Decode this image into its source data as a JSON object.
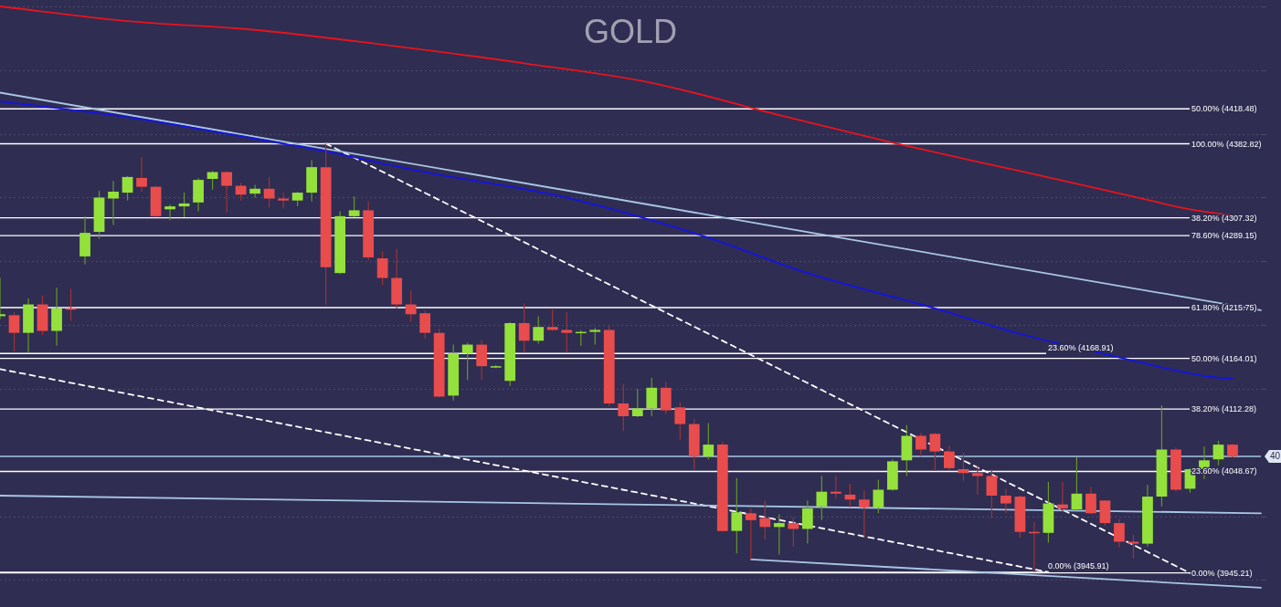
{
  "chart_data": {
    "type": "candlestick",
    "title": "GOLD",
    "categories": [
      null,
      null,
      null,
      null,
      null,
      null,
      null,
      null,
      null,
      null,
      null,
      null,
      null,
      null,
      null,
      null,
      null,
      null,
      null,
      null,
      null,
      null,
      null,
      null,
      null,
      null,
      null,
      null,
      null,
      null,
      null,
      null,
      null,
      null,
      null,
      null,
      null,
      null,
      null,
      null,
      null,
      null,
      null,
      null,
      null,
      null,
      null,
      null,
      null,
      null,
      null,
      null,
      null,
      null,
      null,
      null,
      null,
      null,
      null,
      null,
      null,
      null,
      null,
      null,
      null,
      null,
      null,
      null,
      null,
      null,
      null,
      null,
      null,
      null,
      null,
      null,
      null,
      null,
      null,
      null,
      null,
      null,
      null,
      null,
      null,
      null,
      null,
      null,
      null,
      null
    ],
    "ohlc": [
      [
        4207,
        4246,
        4204,
        4209
      ],
      [
        4208,
        4211,
        4171,
        4190
      ],
      [
        4190,
        4225,
        4170,
        4219
      ],
      [
        4219,
        4228,
        4188,
        4192
      ],
      [
        4192,
        4236,
        4177,
        4215
      ],
      [
        4215,
        4235,
        4202,
        4214
      ],
      [
        4268,
        4309,
        4260,
        4292
      ],
      [
        4293,
        4335,
        4286,
        4328
      ],
      [
        4327,
        4345,
        4300,
        4334
      ],
      [
        4333,
        4350,
        4325,
        4349
      ],
      [
        4348,
        4369,
        4334,
        4339
      ],
      [
        4339,
        4340,
        4308,
        4309
      ],
      [
        4316,
        4321,
        4305,
        4319
      ],
      [
        4319,
        4333,
        4308,
        4322
      ],
      [
        4323,
        4348,
        4314,
        4346
      ],
      [
        4347,
        4355,
        4336,
        4354
      ],
      [
        4354,
        4355,
        4313,
        4340
      ],
      [
        4340,
        4343,
        4325,
        4331
      ],
      [
        4332,
        4341,
        4328,
        4337
      ],
      [
        4337,
        4349,
        4318,
        4327
      ],
      [
        4327,
        4333,
        4317,
        4325
      ],
      [
        4325,
        4334,
        4319,
        4333
      ],
      [
        4333,
        4366,
        4324,
        4359
      ],
      [
        4359,
        4383,
        4219,
        4257
      ],
      [
        4251,
        4314,
        4250,
        4309
      ],
      [
        4309,
        4329,
        4308,
        4315
      ],
      [
        4315,
        4324,
        4264,
        4267
      ],
      [
        4266,
        4273,
        4239,
        4246
      ],
      [
        4246,
        4276,
        4215,
        4219
      ],
      [
        4219,
        4233,
        4201,
        4209
      ],
      [
        4210,
        4213,
        4184,
        4190
      ],
      [
        4190,
        4194,
        4124,
        4125
      ],
      [
        4126,
        4178,
        4121,
        4169
      ],
      [
        4169,
        4180,
        4142,
        4178
      ],
      [
        4178,
        4183,
        4142,
        4156
      ],
      [
        4155,
        4157,
        4154,
        4156
      ],
      [
        4141,
        4201,
        4136,
        4200
      ],
      [
        4200,
        4220,
        4170,
        4182
      ],
      [
        4182,
        4207,
        4179,
        4196
      ],
      [
        4196,
        4214,
        4192,
        4193
      ],
      [
        4193,
        4211,
        4170,
        4190
      ],
      [
        4190,
        4193,
        4177,
        4191
      ],
      [
        4191,
        4195,
        4178,
        4193
      ],
      [
        4193,
        4198,
        4115,
        4118
      ],
      [
        4118,
        4138,
        4090,
        4105
      ],
      [
        4105,
        4133,
        4104,
        4113
      ],
      [
        4113,
        4144,
        4105,
        4134
      ],
      [
        4134,
        4140,
        4107,
        4111
      ],
      [
        4114,
        4119,
        4081,
        4097
      ],
      [
        4097,
        4102,
        4050,
        4064
      ],
      [
        4064,
        4098,
        4061,
        4076
      ],
      [
        4076,
        4079,
        3987,
        3988
      ],
      [
        3988,
        4042,
        3965,
        4007
      ],
      [
        4006,
        4011,
        3959,
        3999
      ],
      [
        4001,
        4019,
        3979,
        3992
      ],
      [
        3992,
        4005,
        3964,
        3996
      ],
      [
        3996,
        4002,
        3972,
        3990
      ],
      [
        3990,
        4019,
        3975,
        4011
      ],
      [
        4013,
        4044,
        3999,
        4028
      ],
      [
        4028,
        4044,
        4021,
        4026
      ],
      [
        4025,
        4036,
        4012,
        4020
      ],
      [
        4020,
        4029,
        3982,
        4012
      ],
      [
        4012,
        4040,
        4006,
        4030
      ],
      [
        4030,
        4061,
        4029,
        4059
      ],
      [
        4060,
        4096,
        4044,
        4085
      ],
      [
        4085,
        4088,
        4064,
        4071
      ],
      [
        4087,
        4088,
        4049,
        4069
      ],
      [
        4069,
        4075,
        4050,
        4052
      ],
      [
        4051,
        4068,
        4039,
        4047
      ],
      [
        4047,
        4055,
        4025,
        4044
      ],
      [
        4044,
        4051,
        4001,
        4024
      ],
      [
        4024,
        4031,
        4006,
        4016
      ],
      [
        4023,
        4024,
        3981,
        3987
      ],
      [
        3987,
        3997,
        3946,
        3986
      ],
      [
        3986,
        4038,
        3976,
        4016
      ],
      [
        4015,
        4038,
        4008,
        4011
      ],
      [
        4010,
        4063,
        4009,
        4026
      ],
      [
        4026,
        4033,
        4005,
        4006
      ],
      [
        4019,
        4019,
        3993,
        3996
      ],
      [
        3996,
        4000,
        3971,
        3977
      ],
      [
        3977,
        3984,
        3960,
        3975
      ],
      [
        3975,
        4035,
        3972,
        4023
      ],
      [
        4023,
        4116,
        4013,
        4071
      ],
      [
        4071,
        4073,
        4028,
        4030
      ],
      [
        4031,
        4052,
        4027,
        4051
      ],
      [
        4051,
        4074,
        4041,
        4060
      ],
      [
        4061,
        4080,
        4055,
        4076
      ],
      [
        4076,
        4077,
        4063,
        4064
      ],
      null,
      null
    ],
    "colors": [
      "#94e13c",
      "#e94c4c",
      "#94e13c",
      "#e94c4c",
      "#94e13c",
      "#e94c4c",
      "#94e13c",
      "#94e13c",
      "#94e13c",
      "#94e13c",
      "#e94c4c",
      "#e94c4c",
      "#94e13c",
      "#94e13c",
      "#94e13c",
      "#94e13c",
      "#e94c4c",
      "#e94c4c",
      "#94e13c",
      "#e94c4c",
      "#e94c4c",
      "#94e13c",
      "#94e13c",
      "#e94c4c",
      "#94e13c",
      "#94e13c",
      "#e94c4c",
      "#e94c4c",
      "#e94c4c",
      "#e94c4c",
      "#e94c4c",
      "#e94c4c",
      "#94e13c",
      "#94e13c",
      "#e94c4c",
      "#94e13c",
      "#94e13c",
      "#e94c4c",
      "#94e13c",
      "#e94c4c",
      "#e94c4c",
      "#94e13c",
      "#94e13c",
      "#e94c4c",
      "#e94c4c",
      "#94e13c",
      "#94e13c",
      "#e94c4c",
      "#e94c4c",
      "#e94c4c",
      "#94e13c",
      "#e94c4c",
      "#94e13c",
      "#e94c4c",
      "#e94c4c",
      "#94e13c",
      "#e94c4c",
      "#94e13c",
      "#94e13c",
      "#e94c4c",
      "#e94c4c",
      "#e94c4c",
      "#94e13c",
      "#94e13c",
      "#94e13c",
      "#e94c4c",
      "#e94c4c",
      "#e94c4c",
      "#e94c4c",
      "#e94c4c",
      "#e94c4c",
      "#e94c4c",
      "#e94c4c",
      "#e94c4c",
      "#94e13c",
      "#e94c4c",
      "#94e13c",
      "#e94c4c",
      "#e94c4c",
      "#e94c4c",
      "#e94c4c",
      "#94e13c",
      "#94e13c",
      "#e94c4c",
      "#94e13c",
      "#94e13c",
      "#94e13c",
      "#e94c4c",
      null,
      null
    ],
    "series": [
      {
        "type": "line",
        "color": "#e8141c",
        "values": [
          4523,
          null,
          null,
          null,
          null,
          null,
          null,
          null,
          null,
          4508,
          null,
          null,
          null,
          null,
          null,
          null,
          null,
          null,
          4499,
          null,
          null,
          null,
          null,
          null,
          null,
          null,
          null,
          4484,
          null,
          null,
          null,
          null,
          null,
          null,
          null,
          null,
          null,
          4465,
          null,
          null,
          null,
          null,
          null,
          null,
          null,
          null,
          4445,
          null,
          null,
          null,
          null,
          null,
          null,
          null,
          null,
          4412,
          null,
          null,
          null,
          null,
          null,
          null,
          null,
          4384,
          null,
          null,
          null,
          null,
          null,
          null,
          null,
          null,
          4355,
          null,
          null,
          null,
          null,
          null,
          null,
          null,
          4329,
          null,
          null,
          null,
          4316,
          null,
          null,
          4310,
          null,
          null
        ]
      },
      {
        "type": "line",
        "color": "#1414e6",
        "values": [
          4426,
          null,
          null,
          null,
          null,
          null,
          null,
          null,
          null,
          4410,
          null,
          null,
          null,
          null,
          null,
          null,
          null,
          null,
          4388,
          null,
          null,
          null,
          null,
          4375,
          null,
          null,
          null,
          null,
          null,
          null,
          4354,
          null,
          null,
          null,
          null,
          null,
          null,
          null,
          null,
          4331,
          null,
          null,
          null,
          null,
          null,
          4309,
          null,
          null,
          null,
          null,
          4287,
          null,
          null,
          null,
          null,
          null,
          null,
          4251,
          null,
          null,
          null,
          null,
          null,
          null,
          null,
          null,
          4215,
          null,
          null,
          null,
          null,
          null,
          4189,
          null,
          null,
          null,
          null,
          null,
          null,
          4165,
          null,
          null,
          null,
          null,
          null,
          4146,
          null,
          4143,
          null,
          null
        ]
      },
      {
        "type": "line",
        "color": "#a9c6e4",
        "values": [
          4435,
          null,
          null,
          null,
          null,
          null,
          null,
          null,
          null,
          null,
          null,
          null,
          null,
          null,
          null,
          null,
          null,
          null,
          null,
          null,
          null,
          null,
          null,
          null,
          null,
          null,
          null,
          null,
          null,
          null,
          null,
          null,
          null,
          null,
          null,
          null,
          null,
          null,
          null,
          null,
          null,
          null,
          null,
          null,
          null,
          null,
          null,
          null,
          null,
          null,
          null,
          null,
          null,
          null,
          null,
          null,
          null,
          null,
          null,
          null,
          null,
          null,
          null,
          null,
          null,
          null,
          null,
          null,
          null,
          null,
          null,
          null,
          null,
          null,
          null,
          null,
          null,
          null,
          null,
          null,
          null,
          null,
          null,
          null,
          null,
          null,
          null,
          null,
          null,
          4213
        ]
      },
      {
        "type": "line",
        "color": "#a9c6e4",
        "values": [
          4024,
          null,
          null,
          null,
          null,
          null,
          null,
          null,
          null,
          null,
          null,
          null,
          null,
          null,
          null,
          null,
          null,
          null,
          null,
          null,
          null,
          null,
          null,
          null,
          null,
          null,
          null,
          null,
          null,
          null,
          null,
          null,
          null,
          null,
          null,
          null,
          null,
          null,
          null,
          null,
          null,
          null,
          null,
          null,
          null,
          null,
          null,
          null,
          null,
          null,
          null,
          null,
          null,
          null,
          null,
          null,
          null,
          null,
          null,
          null,
          null,
          null,
          null,
          null,
          null,
          null,
          null,
          null,
          null,
          null,
          null,
          null,
          null,
          null,
          null,
          null,
          null,
          null,
          null,
          null,
          null,
          null,
          null,
          null,
          null,
          null,
          null,
          null,
          null,
          4006
        ]
      },
      {
        "type": "line",
        "color": "#a9c6e4",
        "values": [
          null,
          null,
          null,
          null,
          null,
          null,
          null,
          null,
          null,
          null,
          null,
          null,
          null,
          null,
          null,
          null,
          null,
          null,
          null,
          null,
          null,
          null,
          null,
          null,
          null,
          null,
          null,
          null,
          null,
          null,
          null,
          null,
          null,
          null,
          null,
          null,
          null,
          null,
          null,
          null,
          null,
          null,
          null,
          null,
          null,
          null,
          null,
          null,
          null,
          null,
          null,
          null,
          null,
          3959,
          null,
          null,
          null,
          null,
          null,
          null,
          null,
          null,
          null,
          null,
          null,
          null,
          null,
          null,
          null,
          null,
          null,
          null,
          null,
          null,
          null,
          null,
          null,
          null,
          null,
          null,
          null,
          null,
          null,
          null,
          null,
          null,
          null,
          null,
          null,
          3930
        ]
      },
      {
        "type": "line",
        "color": "#ffffff",
        "line_style": "dashed",
        "values": [
          null,
          null,
          null,
          null,
          null,
          null,
          null,
          null,
          null,
          null,
          null,
          null,
          null,
          null,
          null,
          null,
          null,
          null,
          null,
          null,
          null,
          null,
          null,
          4383,
          null,
          null,
          null,
          null,
          null,
          null,
          null,
          null,
          null,
          null,
          null,
          null,
          null,
          null,
          null,
          null,
          null,
          null,
          null,
          null,
          null,
          null,
          null,
          null,
          null,
          null,
          null,
          null,
          null,
          null,
          null,
          null,
          null,
          null,
          null,
          null,
          null,
          null,
          null,
          null,
          null,
          null,
          null,
          null,
          null,
          null,
          null,
          null,
          null,
          null,
          null,
          null,
          null,
          null,
          null,
          null,
          null,
          null,
          null,
          null,
          3945,
          null,
          null,
          null,
          null,
          null
        ]
      },
      {
        "type": "line",
        "color": "#ffffff",
        "line_style": "dashed",
        "values": [
          4153,
          null,
          null,
          null,
          null,
          null,
          null,
          null,
          null,
          null,
          null,
          null,
          null,
          null,
          null,
          null,
          null,
          null,
          null,
          null,
          null,
          null,
          null,
          null,
          null,
          null,
          null,
          null,
          null,
          null,
          null,
          null,
          null,
          null,
          null,
          null,
          null,
          null,
          null,
          null,
          null,
          null,
          null,
          null,
          null,
          null,
          null,
          null,
          null,
          null,
          null,
          null,
          null,
          null,
          null,
          null,
          null,
          null,
          null,
          null,
          null,
          null,
          null,
          null,
          null,
          null,
          null,
          null,
          null,
          null,
          null,
          null,
          null,
          null,
          3946,
          null,
          null,
          null,
          null,
          null,
          null,
          null,
          null,
          null,
          null,
          null,
          null,
          null,
          null,
          null
        ]
      }
    ],
    "ylim": [
      3910.4,
      4529.5
    ],
    "yticks": [
      {
        "value": 3937.5,
        "label": null
      },
      {
        "value": 4002.5,
        "label": null
      },
      {
        "value": 4132.5,
        "label": null
      },
      {
        "value": 4197.5,
        "label": null
      },
      {
        "value": 4262.5,
        "label": null
      },
      {
        "value": 4327.5,
        "label": null
      },
      {
        "value": 4392.5,
        "label": null
      },
      {
        "value": 4457.5,
        "label": null
      },
      {
        "value": 4522.5,
        "label": null
      }
    ],
    "grid": "y",
    "tick_labels": false,
    "ref_lines": [
      {
        "axis": "y",
        "value": 4382.82,
        "label": "100.00% (4382.82)",
        "color": "#ffffff"
      },
      {
        "axis": "y",
        "value": 4289.15,
        "label": "78.60% (4289.15)",
        "color": "#ffffff"
      },
      {
        "axis": "y",
        "value": 4215.75,
        "label": "61.80% (4215.75)",
        "color": "#ffffff"
      },
      {
        "axis": "y",
        "value": 4164.01,
        "label": "50.00% (4164.01)",
        "color": "#ffffff"
      },
      {
        "axis": "y",
        "value": 4112.28,
        "label": "38.20% (4112.28)",
        "color": "#ffffff"
      },
      {
        "axis": "y",
        "value": 4048.67,
        "label": "23.60% (4048.67)",
        "color": "#ffffff"
      },
      {
        "axis": "y",
        "value": 3945.21,
        "label": "0.00% (3945.21)",
        "color": "#ffffff"
      },
      {
        "axis": "y",
        "value": 4418.48,
        "label": "50.00% (4418.48)",
        "color": "#ffffff"
      },
      {
        "axis": "y",
        "value": 4307.32,
        "label": "38.20% (4307.32)",
        "color": "#ffffff"
      },
      {
        "axis": "y",
        "value": 4168.91,
        "label": "23.60% (4168.91)",
        "color": "#ffffff"
      },
      {
        "axis": "y",
        "value": 3945.91,
        "label": "0.00% (3945.91)",
        "color": "#ffffff"
      },
      {
        "axis": "y",
        "value": 4064,
        "color": "#a9c6e4"
      }
    ],
    "annotations": [
      "40"
    ]
  }
}
